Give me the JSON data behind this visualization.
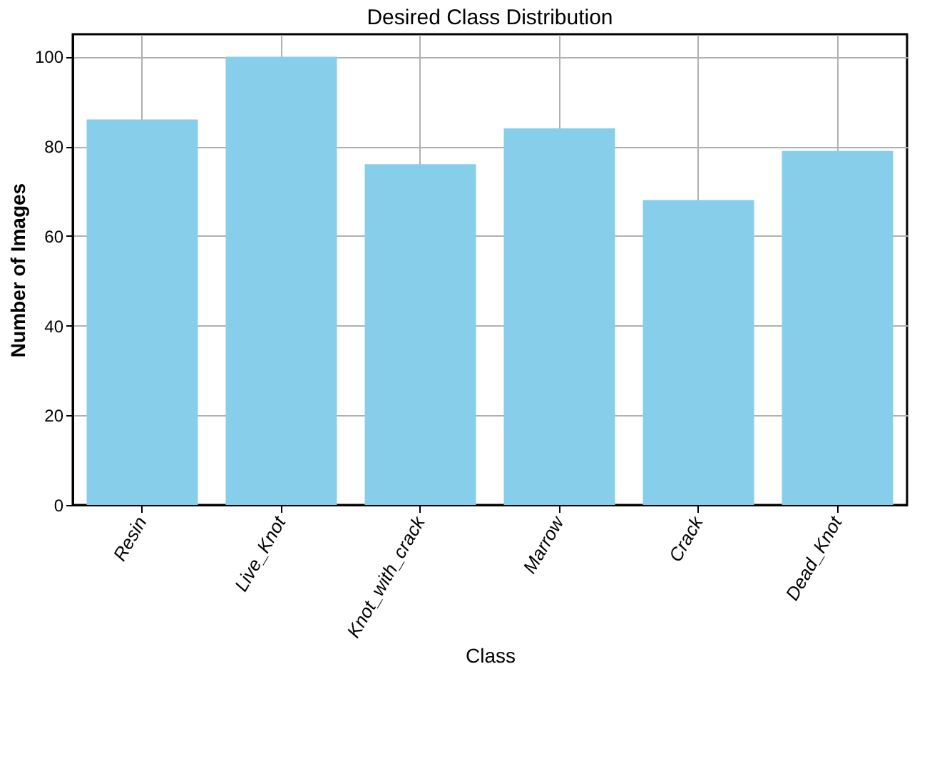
{
  "chart_data": {
    "type": "bar",
    "title": "Desired Class Distribution",
    "xlabel": "Class",
    "ylabel": "Number of Images",
    "categories": [
      "Resin",
      "Live_Knot",
      "Knot_with_crack",
      "Marrow",
      "Crack",
      "Dead_Knot"
    ],
    "values": [
      86,
      100,
      76,
      84,
      68,
      79
    ],
    "color": "#87ceeb",
    "ylim": [
      0,
      105
    ],
    "yticks": [
      0,
      20,
      40,
      60,
      80,
      100
    ],
    "grid": true
  }
}
